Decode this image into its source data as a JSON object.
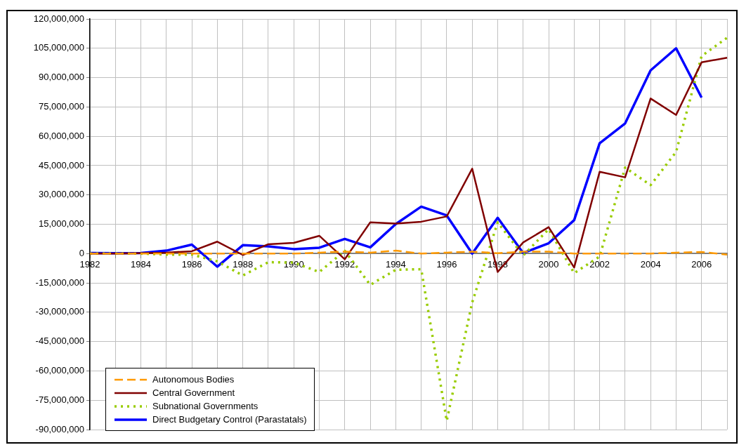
{
  "chart_data": {
    "type": "line",
    "categories": [
      "1982",
      null,
      "1984",
      null,
      "1986",
      null,
      "1988",
      null,
      "1990",
      null,
      "1992",
      null,
      "1994",
      null,
      "1996",
      null,
      "1998",
      null,
      "2000",
      null,
      "2002",
      null,
      "2004",
      null,
      "2006",
      null
    ],
    "series": [
      {
        "name": "Autonomous Bodies",
        "color": "#ff9900",
        "line_style": "dashed",
        "values": [
          0,
          0,
          0,
          0,
          0,
          0,
          0,
          0,
          0,
          500000.0,
          1000000.0,
          500000.0,
          1500000.0,
          0,
          500000.0,
          1000000.0,
          200000.0,
          1000000.0,
          1000000.0,
          0,
          0,
          0,
          0,
          500000.0,
          800000.0,
          -500000.0
        ]
      },
      {
        "name": "Central Government",
        "color": "#800000",
        "line_style": "solid",
        "values": [
          0,
          0,
          200000.0,
          500000.0,
          1200000.0,
          6100000.0,
          -700000.0,
          4800000.0,
          5500000.0,
          9100000.0,
          -2900000.0,
          16000000.0,
          15400000.0,
          16300000.0,
          19000000.0,
          43400000.0,
          -9400000.0,
          5700000.0,
          13500000.0,
          -7100000.0,
          41800000.0,
          39000000.0,
          79300000.0,
          70900000.0,
          97800000.0,
          100200000.0
        ]
      },
      {
        "name": "Subnational Governments",
        "color": "#99cc00",
        "line_style": "dotted",
        "values": [
          0,
          0,
          0,
          -500000.0,
          -500000.0,
          -4000000.0,
          -11200000.0,
          -4400000.0,
          -4600000.0,
          -9400000.0,
          1400000.0,
          -16000000.0,
          -8300000.0,
          -8000000.0,
          -85500000.0,
          -25000000.0,
          16000000.0,
          -1000000.0,
          12500000.0,
          -10000000.0,
          -1500000.0,
          44000000.0,
          35000000.0,
          52000000.0,
          101000000.0,
          110400000.0
        ]
      },
      {
        "name": "Direct Budgetary Control (Parastatals)",
        "color": "#0000ff",
        "line_style": "solid",
        "values": [
          300000.0,
          200000.0,
          300000.0,
          1500000.0,
          4600000.0,
          -6700000.0,
          4300000.0,
          3700000.0,
          2300000.0,
          3000000.0,
          7500000.0,
          3200000.0,
          15100000.0,
          24000000.0,
          19500000.0,
          0,
          18300000.0,
          300000.0,
          5300000.0,
          17100000.0,
          56400000.0,
          66600000.0,
          93700000.0,
          105000000.0,
          79800000.0,
          null
        ]
      }
    ],
    "ylim": [
      -90000000,
      120000000
    ],
    "yticks": [
      {
        "value": -90000000,
        "label": "-90,000,000"
      },
      {
        "value": -75000000,
        "label": "-75,000,000"
      },
      {
        "value": -60000000,
        "label": "-60,000,000"
      },
      {
        "value": -45000000,
        "label": "-45,000,000"
      },
      {
        "value": -30000000,
        "label": "-30,000,000"
      },
      {
        "value": -15000000,
        "label": "-15,000,000"
      },
      {
        "value": 0,
        "label": "0"
      },
      {
        "value": 15000000,
        "label": "15,000,000"
      },
      {
        "value": 30000000,
        "label": "30,000,000"
      },
      {
        "value": 45000000,
        "label": "45,000,000"
      },
      {
        "value": 60000000,
        "label": "60,000,000"
      },
      {
        "value": 75000000,
        "label": "75,000,000"
      },
      {
        "value": 90000000,
        "label": "90,000,000"
      },
      {
        "value": 105000000,
        "label": "105,000,000"
      },
      {
        "value": 120000000,
        "label": "120,000,000"
      }
    ],
    "grid": true,
    "legend": "bottom left",
    "marker": "none"
  }
}
